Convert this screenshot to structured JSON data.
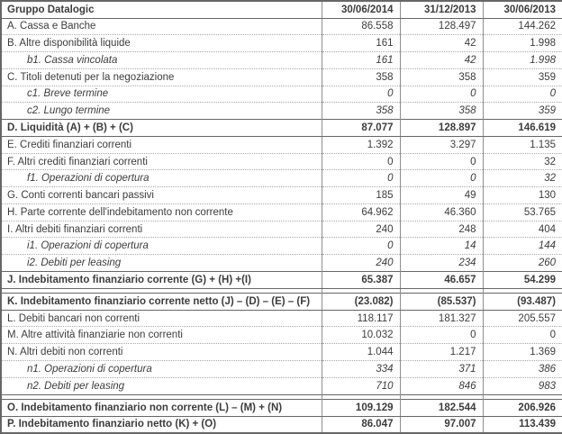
{
  "table": {
    "header": {
      "label": "Gruppo Datalogic",
      "columns": [
        "30/06/2014",
        "31/12/2013",
        "30/06/2013"
      ]
    },
    "rows": [
      {
        "label": "A. Cassa e Banche",
        "values": [
          "86.558",
          "128.497",
          "144.262"
        ],
        "style": "normal"
      },
      {
        "label": "B. Altre disponibilità liquide",
        "values": [
          "161",
          "42",
          "1.998"
        ],
        "style": "normal"
      },
      {
        "label": "b1. Cassa vincolata",
        "values": [
          "161",
          "42",
          "1.998"
        ],
        "style": "sub"
      },
      {
        "label": "C. Titoli detenuti per la negoziazione",
        "values": [
          "358",
          "358",
          "359"
        ],
        "style": "normal"
      },
      {
        "label": "c1. Breve termine",
        "values": [
          "0",
          "0",
          "0"
        ],
        "style": "sub"
      },
      {
        "label": "c2. Lungo termine",
        "values": [
          "358",
          "358",
          "359"
        ],
        "style": "sub"
      },
      {
        "label": "D. Liquidità (A) + (B) + (C)",
        "values": [
          "87.077",
          "128.897",
          "146.619"
        ],
        "style": "total"
      },
      {
        "label": "E. Crediti finanziari correnti",
        "values": [
          "1.392",
          "3.297",
          "1.135"
        ],
        "style": "normal"
      },
      {
        "label": "F. Altri crediti finanziari correnti",
        "values": [
          "0",
          "0",
          "32"
        ],
        "style": "normal"
      },
      {
        "label": "f1. Operazioni di copertura",
        "values": [
          "0",
          "0",
          "32"
        ],
        "style": "sub"
      },
      {
        "label": "G. Conti correnti bancari passivi",
        "values": [
          "185",
          "49",
          "130"
        ],
        "style": "normal"
      },
      {
        "label": "H. Parte corrente dell'indebitamento non corrente",
        "values": [
          "64.962",
          "46.360",
          "53.765"
        ],
        "style": "normal"
      },
      {
        "label": "I. Altri debiti finanziari correnti",
        "values": [
          "240",
          "248",
          "404"
        ],
        "style": "normal"
      },
      {
        "label": "i1. Operazioni di copertura",
        "values": [
          "0",
          "14",
          "144"
        ],
        "style": "sub"
      },
      {
        "label": "i2. Debiti per leasing",
        "values": [
          "240",
          "234",
          "260"
        ],
        "style": "sub"
      },
      {
        "label": "J. Indebitamento finanziario corrente (G) + (H) +(I)",
        "values": [
          "65.387",
          "46.657",
          "54.299"
        ],
        "style": "total"
      },
      {
        "label": "",
        "values": [
          "",
          "",
          ""
        ],
        "style": "spacer"
      },
      {
        "label": "K. Indebitamento finanziario corrente netto (J) – (D) – (E) – (F)",
        "values": [
          "(23.082)",
          "(85.537)",
          "(93.487)"
        ],
        "style": "total"
      },
      {
        "label": "L. Debiti bancari non correnti",
        "values": [
          "118.117",
          "181.327",
          "205.557"
        ],
        "style": "normal"
      },
      {
        "label": "M. Altre attività finanziarie non correnti",
        "values": [
          "10.032",
          "0",
          "0"
        ],
        "style": "normal"
      },
      {
        "label": "N. Altri debiti non correnti",
        "values": [
          "1.044",
          "1.217",
          "1.369"
        ],
        "style": "normal"
      },
      {
        "label": "n1.  Operazioni di copertura",
        "values": [
          "334",
          "371",
          "386"
        ],
        "style": "sub"
      },
      {
        "label": "n2.  Debiti per leasing",
        "values": [
          "710",
          "846",
          "983"
        ],
        "style": "sub"
      },
      {
        "label": "",
        "values": [
          "",
          "",
          ""
        ],
        "style": "spacer"
      },
      {
        "label": "O. Indebitamento finanziario non corrente  (L) – (M) + (N)",
        "values": [
          "109.129",
          "182.544",
          "206.926"
        ],
        "style": "total"
      },
      {
        "label": "P. Indebitamento finanziario netto (K) + (O)",
        "values": [
          "86.047",
          "97.007",
          "113.439"
        ],
        "style": "total"
      }
    ]
  }
}
